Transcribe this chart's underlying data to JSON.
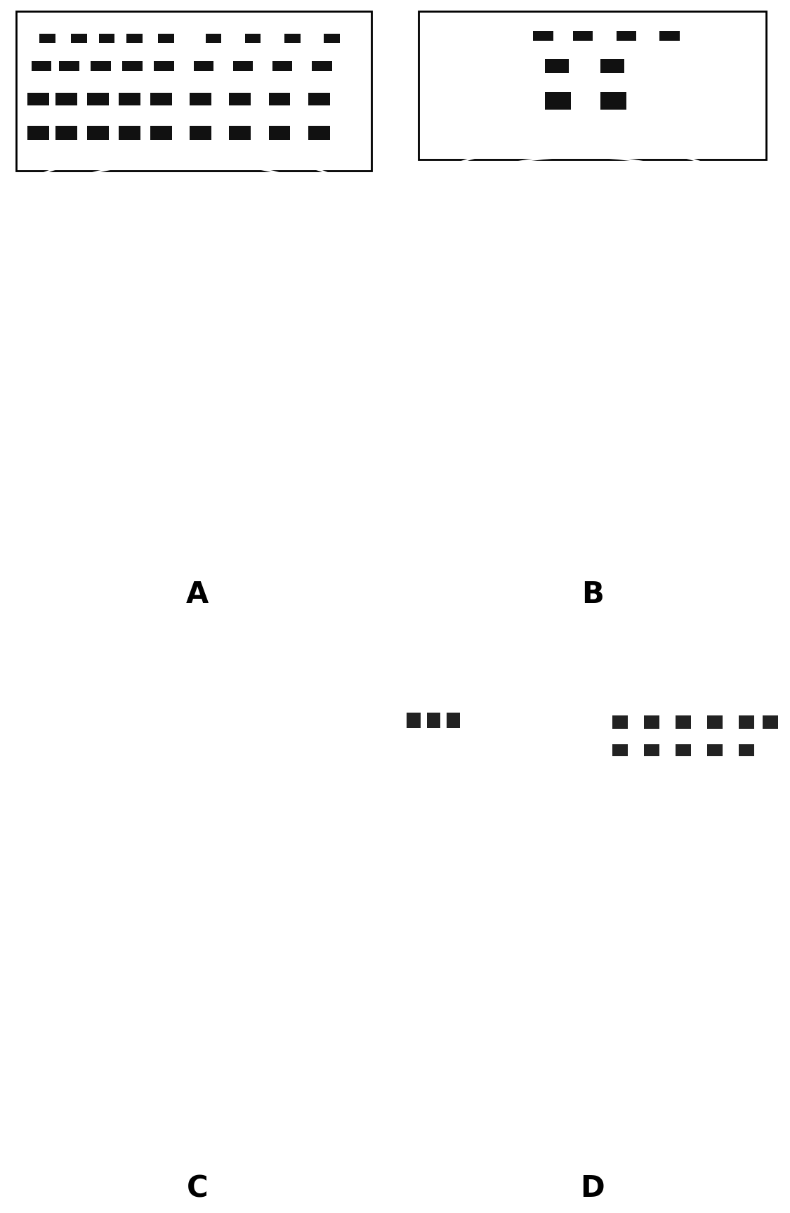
{
  "bg_color": "#000000",
  "white": "#ffffff",
  "fig_bg": "#ffffff",
  "label_color": "#000000",
  "panel_labels": [
    "A",
    "B",
    "C",
    "D"
  ],
  "label_fontsize": 30,
  "label_fontweight": "bold",
  "fig_width": 11.25,
  "fig_height": 17.26
}
